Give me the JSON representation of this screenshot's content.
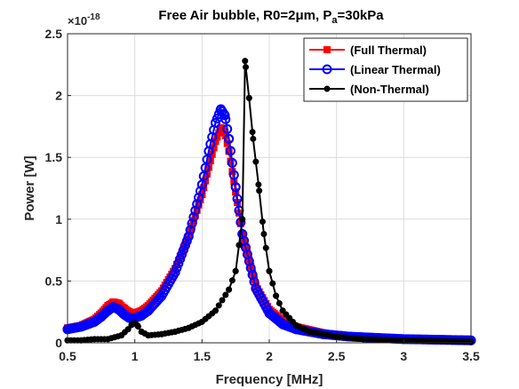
{
  "chart_data": {
    "type": "line",
    "title": "Free Air bubble, R0=2",
    "title_mu": "μ",
    "title_m": "m, P",
    "title_sub": "a",
    "title_end": "=30kPa",
    "xlabel": "Frequency [MHz]",
    "ylabel": "Power [W]",
    "y_exponent_prefix": "×10",
    "y_exponent": "-18",
    "xlim": [
      0.5,
      3.5
    ],
    "ylim": [
      0,
      2.5
    ],
    "xticks": [
      0.5,
      1,
      1.5,
      2,
      2.5,
      3,
      3.5
    ],
    "xtick_labels": [
      "0.5",
      "1",
      "1.5",
      "2",
      "2.5",
      "3",
      "3.5"
    ],
    "yticks": [
      0,
      0.5,
      1,
      1.5,
      2,
      2.5
    ],
    "ytick_labels": [
      "0",
      "0.5",
      "1",
      "1.5",
      "2",
      "2.5"
    ],
    "grid": true,
    "legend_position": "top-right",
    "series": [
      {
        "name": "(Full Thermal)",
        "color": "#ff0000",
        "marker": "square",
        "x": [
          0.5,
          0.6,
          0.7,
          0.75,
          0.8,
          0.84,
          0.88,
          0.92,
          0.96,
          1.0,
          1.05,
          1.1,
          1.2,
          1.3,
          1.4,
          1.5,
          1.55,
          1.6,
          1.64,
          1.67,
          1.7,
          1.75,
          1.8,
          1.9,
          2.0,
          2.1,
          2.2,
          2.4,
          2.6,
          3.0,
          3.5
        ],
        "y": [
          0.12,
          0.14,
          0.19,
          0.24,
          0.3,
          0.33,
          0.32,
          0.28,
          0.25,
          0.24,
          0.26,
          0.3,
          0.42,
          0.6,
          0.86,
          1.2,
          1.42,
          1.63,
          1.74,
          1.7,
          1.55,
          1.22,
          0.88,
          0.46,
          0.27,
          0.18,
          0.13,
          0.08,
          0.05,
          0.03,
          0.02
        ]
      },
      {
        "name": "(Linear Thermal)",
        "color": "#0000ff",
        "marker": "circle",
        "x": [
          0.5,
          0.6,
          0.7,
          0.75,
          0.8,
          0.84,
          0.88,
          0.92,
          0.96,
          1.0,
          1.05,
          1.1,
          1.2,
          1.3,
          1.4,
          1.5,
          1.55,
          1.6,
          1.64,
          1.67,
          1.7,
          1.75,
          1.8,
          1.9,
          2.0,
          2.1,
          2.2,
          2.4,
          2.6,
          3.0,
          3.5
        ],
        "y": [
          0.11,
          0.13,
          0.17,
          0.21,
          0.26,
          0.29,
          0.27,
          0.23,
          0.2,
          0.2,
          0.22,
          0.26,
          0.38,
          0.57,
          0.86,
          1.28,
          1.55,
          1.78,
          1.89,
          1.84,
          1.65,
          1.26,
          0.88,
          0.44,
          0.24,
          0.15,
          0.11,
          0.07,
          0.05,
          0.03,
          0.02
        ]
      },
      {
        "name": "(Non-Thermal)",
        "color": "#000000",
        "marker": "dot",
        "x": [
          0.5,
          0.6,
          0.7,
          0.8,
          0.9,
          0.95,
          0.98,
          1.0,
          1.02,
          1.05,
          1.1,
          1.2,
          1.3,
          1.4,
          1.5,
          1.6,
          1.7,
          1.75,
          1.8,
          1.82,
          1.85,
          1.88,
          1.92,
          1.96,
          2.0,
          2.05,
          2.1,
          2.2,
          2.3,
          2.5,
          2.7,
          3.0,
          3.5
        ],
        "y": [
          0.02,
          0.02,
          0.03,
          0.03,
          0.06,
          0.11,
          0.15,
          0.16,
          0.14,
          0.09,
          0.06,
          0.07,
          0.09,
          0.12,
          0.17,
          0.26,
          0.43,
          0.58,
          1.0,
          2.28,
          1.98,
          1.65,
          1.28,
          0.88,
          0.58,
          0.38,
          0.26,
          0.14,
          0.09,
          0.05,
          0.03,
          0.02,
          0.01
        ]
      }
    ]
  }
}
